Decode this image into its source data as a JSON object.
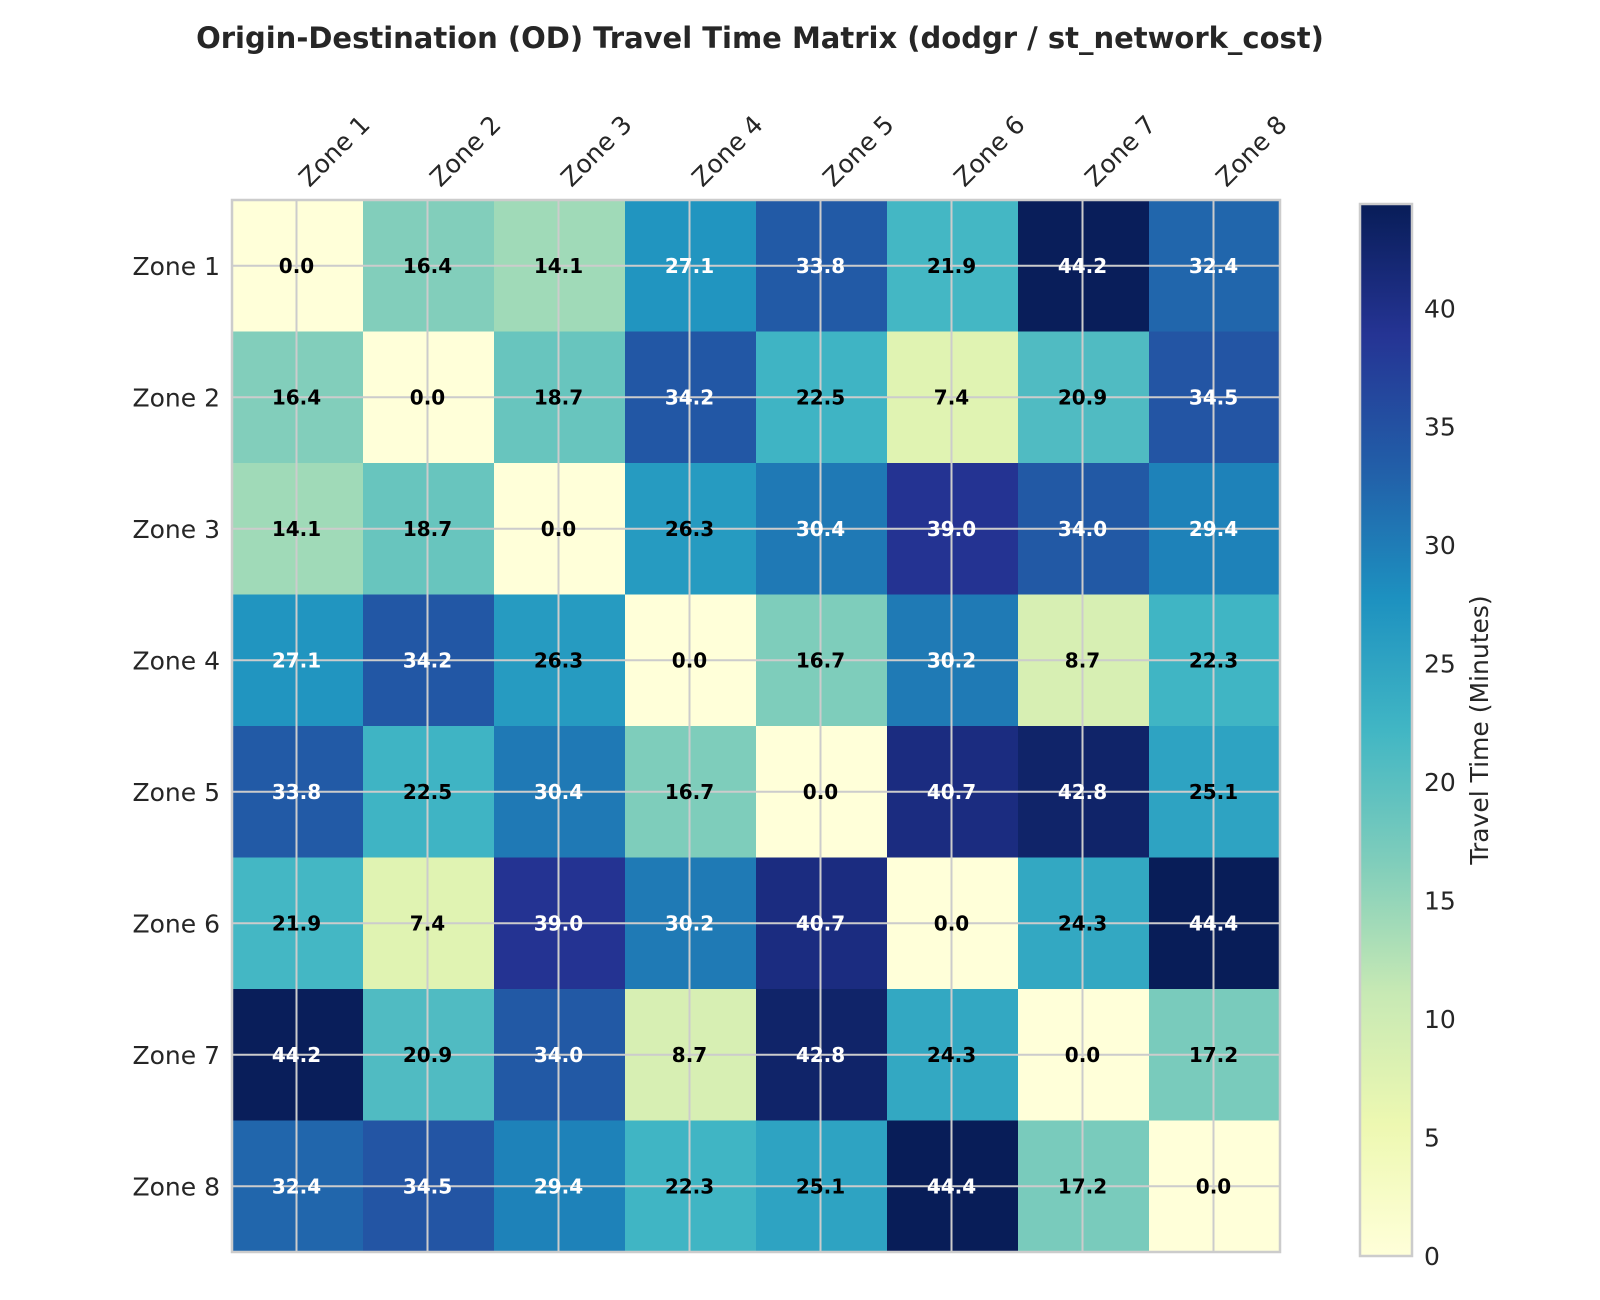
{
  "chart_data": {
    "type": "heatmap",
    "title": "Origin-Destination (OD) Travel Time Matrix (dodgr / st_network_cost)",
    "x_categories": [
      "Zone 1",
      "Zone 2",
      "Zone 3",
      "Zone 4",
      "Zone 5",
      "Zone 6",
      "Zone 7",
      "Zone 8"
    ],
    "y_categories": [
      "Zone 1",
      "Zone 2",
      "Zone 3",
      "Zone 4",
      "Zone 5",
      "Zone 6",
      "Zone 7",
      "Zone 8"
    ],
    "values": [
      [
        0.0,
        16.4,
        14.1,
        27.1,
        33.8,
        21.9,
        44.2,
        32.4
      ],
      [
        16.4,
        0.0,
        18.7,
        34.2,
        22.5,
        7.4,
        20.9,
        34.5
      ],
      [
        14.1,
        18.7,
        0.0,
        26.3,
        30.4,
        39.0,
        34.0,
        29.4
      ],
      [
        27.1,
        34.2,
        26.3,
        0.0,
        16.7,
        30.2,
        8.7,
        22.3
      ],
      [
        33.8,
        22.5,
        30.4,
        16.7,
        0.0,
        40.7,
        42.8,
        25.1
      ],
      [
        21.9,
        7.4,
        39.0,
        30.2,
        40.7,
        0.0,
        24.3,
        44.4
      ],
      [
        44.2,
        20.9,
        34.0,
        8.7,
        42.8,
        24.3,
        0.0,
        17.2
      ],
      [
        32.4,
        34.5,
        29.4,
        22.3,
        25.1,
        44.4,
        17.2,
        0.0
      ]
    ],
    "value_labels_format": "one decimal",
    "colormap": "YlGnBu",
    "colorbar": {
      "label": "Travel Time (Minutes)",
      "range": [
        0,
        44.4
      ],
      "ticks": [
        0,
        5,
        10,
        15,
        20,
        25,
        30,
        35,
        40
      ]
    },
    "x_axis_position": "top",
    "x_tick_rotation": "45 degrees",
    "grid": true
  },
  "colors": {
    "ylgnbu": [
      "#ffffd9",
      "#edf8b1",
      "#c7e9b4",
      "#7fcdbb",
      "#41b6c4",
      "#1d91c0",
      "#225ea8",
      "#253494",
      "#081d58"
    ],
    "text_light": "#ffffff",
    "text_dark": "#000000",
    "grid": "#cccccc",
    "frame": "#cccccc",
    "axis_text": "#262626"
  }
}
